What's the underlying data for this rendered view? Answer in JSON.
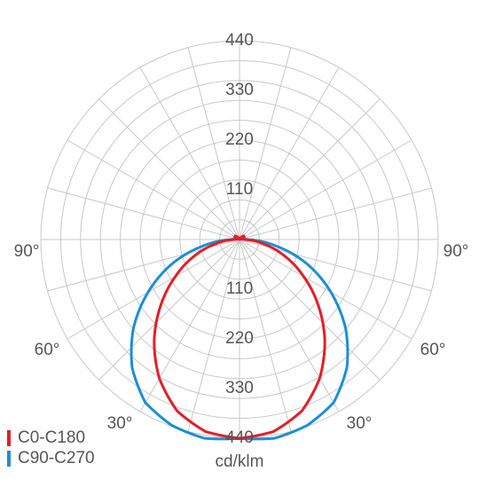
{
  "chart_data": {
    "type": "polar",
    "unit": "cd/klm",
    "radial_ticks": [
      "110",
      "220",
      "330",
      "440"
    ],
    "rmax": 440,
    "angle_labels": {
      "upper_left": "90°",
      "upper_right": "90°",
      "left_60": "60°",
      "right_60": "60°",
      "left_30": "30°",
      "right_30": "30°"
    },
    "grid": true,
    "legend_placement": "bottom-left",
    "series": [
      {
        "name": "C0-C180",
        "color": "#e41e26",
        "gamma": [
          0,
          10,
          20,
          30,
          40,
          50,
          60,
          70,
          80,
          90,
          100,
          110,
          120,
          130,
          140,
          150,
          160,
          170,
          180
        ],
        "values": [
          440,
          432,
          404,
          355,
          294,
          228,
          164,
          106,
          52,
          11,
          4,
          8,
          12,
          12,
          7,
          3,
          1,
          0,
          0
        ]
      },
      {
        "name": "C90-C270",
        "color": "#1a8fd6",
        "gamma": [
          0,
          10,
          20,
          30,
          40,
          50,
          60,
          70,
          80,
          90,
          100,
          110,
          120,
          130,
          140,
          150,
          160,
          170,
          180
        ],
        "values": [
          440,
          447,
          438,
          417,
          370,
          307,
          234,
          160,
          82,
          17,
          5,
          8,
          12,
          12,
          7,
          3,
          1,
          0,
          0
        ]
      }
    ]
  }
}
